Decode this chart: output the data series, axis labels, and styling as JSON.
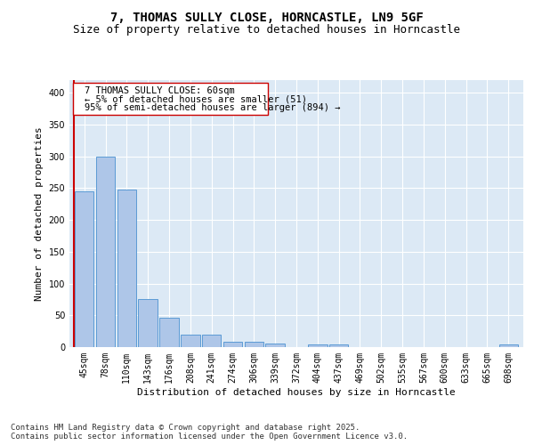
{
  "title_line1": "7, THOMAS SULLY CLOSE, HORNCASTLE, LN9 5GF",
  "title_line2": "Size of property relative to detached houses in Horncastle",
  "xlabel": "Distribution of detached houses by size in Horncastle",
  "ylabel": "Number of detached properties",
  "categories": [
    "45sqm",
    "78sqm",
    "110sqm",
    "143sqm",
    "176sqm",
    "208sqm",
    "241sqm",
    "274sqm",
    "306sqm",
    "339sqm",
    "372sqm",
    "404sqm",
    "437sqm",
    "469sqm",
    "502sqm",
    "535sqm",
    "567sqm",
    "600sqm",
    "633sqm",
    "665sqm",
    "698sqm"
  ],
  "values": [
    245,
    300,
    248,
    76,
    46,
    20,
    20,
    9,
    8,
    5,
    0,
    4,
    4,
    0,
    0,
    0,
    0,
    0,
    0,
    0,
    4
  ],
  "bar_color": "#aec6e8",
  "bar_edge_color": "#5b9bd5",
  "annotation_line1": "7 THOMAS SULLY CLOSE: 60sqm",
  "annotation_line2": "← 5% of detached houses are smaller (51)",
  "annotation_line3": "95% of semi-detached houses are larger (894) →",
  "vline_color": "#cc0000",
  "ylim": [
    0,
    420
  ],
  "yticks": [
    0,
    50,
    100,
    150,
    200,
    250,
    300,
    350,
    400
  ],
  "background_color": "#dce9f5",
  "footer_line1": "Contains HM Land Registry data © Crown copyright and database right 2025.",
  "footer_line2": "Contains public sector information licensed under the Open Government Licence v3.0.",
  "title_fontsize": 10,
  "subtitle_fontsize": 9,
  "axis_label_fontsize": 8,
  "tick_fontsize": 7,
  "annotation_fontsize": 7.5,
  "footer_fontsize": 6.5
}
